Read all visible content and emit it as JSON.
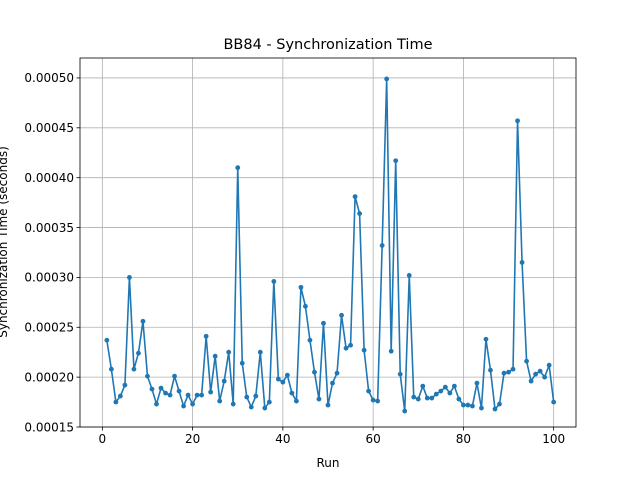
{
  "chart_data": {
    "type": "line",
    "title": "BB84 - Synchronization Time",
    "xlabel": "Run",
    "ylabel": "Synchronization Time (seconds)",
    "xlim": [
      -4.95,
      104.95
    ],
    "ylim": [
      0.00015,
      0.00052
    ],
    "xticks": [
      0,
      20,
      40,
      60,
      80,
      100
    ],
    "xtick_labels": [
      "0",
      "20",
      "40",
      "60",
      "80",
      "100"
    ],
    "yticks": [
      0.00015,
      0.0002,
      0.00025,
      0.0003,
      0.00035,
      0.0004,
      0.00045,
      0.0005
    ],
    "ytick_labels": [
      "0.00015",
      "0.00020",
      "0.00025",
      "0.00030",
      "0.00035",
      "0.00040",
      "0.00045",
      "0.00050"
    ],
    "grid": true,
    "line_color": "#1f77b4",
    "marker": "circle",
    "series": [
      {
        "x": [
          1,
          2,
          3,
          4,
          5,
          6,
          7,
          8,
          9,
          10,
          11,
          12,
          13,
          14,
          15,
          16,
          17,
          18,
          19,
          20,
          21,
          22,
          23,
          24,
          25,
          26,
          27,
          28,
          29,
          30,
          31,
          32,
          33,
          34,
          35,
          36,
          37,
          38,
          39,
          40,
          41,
          42,
          43,
          44,
          45,
          46,
          47,
          48,
          49,
          50,
          51,
          52,
          53,
          54,
          55,
          56,
          57,
          58,
          59,
          60,
          61,
          62,
          63,
          64,
          65,
          66,
          67,
          68,
          69,
          70,
          71,
          72,
          73,
          74,
          75,
          76,
          77,
          78,
          79,
          80,
          81,
          82,
          83,
          84,
          85,
          86,
          87,
          88,
          89,
          90,
          91,
          92,
          93,
          94,
          95,
          96,
          97,
          98,
          99,
          100
        ],
        "values": [
          0.000237,
          0.000208,
          0.000175,
          0.000181,
          0.000192,
          0.0003,
          0.000208,
          0.000224,
          0.000256,
          0.000201,
          0.000188,
          0.000173,
          0.000189,
          0.000184,
          0.000182,
          0.000201,
          0.000186,
          0.000171,
          0.000182,
          0.000173,
          0.000182,
          0.000182,
          0.000241,
          0.000185,
          0.000221,
          0.000176,
          0.000196,
          0.000225,
          0.000173,
          0.00041,
          0.000214,
          0.00018,
          0.00017,
          0.000181,
          0.000225,
          0.000169,
          0.000175,
          0.000296,
          0.000198,
          0.000195,
          0.000202,
          0.000184,
          0.000176,
          0.00029,
          0.000271,
          0.000237,
          0.000205,
          0.000178,
          0.000254,
          0.000172,
          0.000194,
          0.000204,
          0.000262,
          0.000229,
          0.000232,
          0.000381,
          0.000364,
          0.000227,
          0.000186,
          0.000177,
          0.000176,
          0.000332,
          0.000499,
          0.000226,
          0.000417,
          0.000203,
          0.000166,
          0.000302,
          0.00018,
          0.000178,
          0.000191,
          0.000179,
          0.000179,
          0.000183,
          0.000186,
          0.00019,
          0.000184,
          0.000191,
          0.000178,
          0.000172,
          0.000172,
          0.000171,
          0.000194,
          0.000169,
          0.000238,
          0.000207,
          0.000168,
          0.000173,
          0.000204,
          0.000205,
          0.000208,
          0.000457,
          0.000315,
          0.000216,
          0.000196,
          0.000203,
          0.000206,
          0.0002,
          0.000212,
          0.000175
        ]
      }
    ]
  }
}
